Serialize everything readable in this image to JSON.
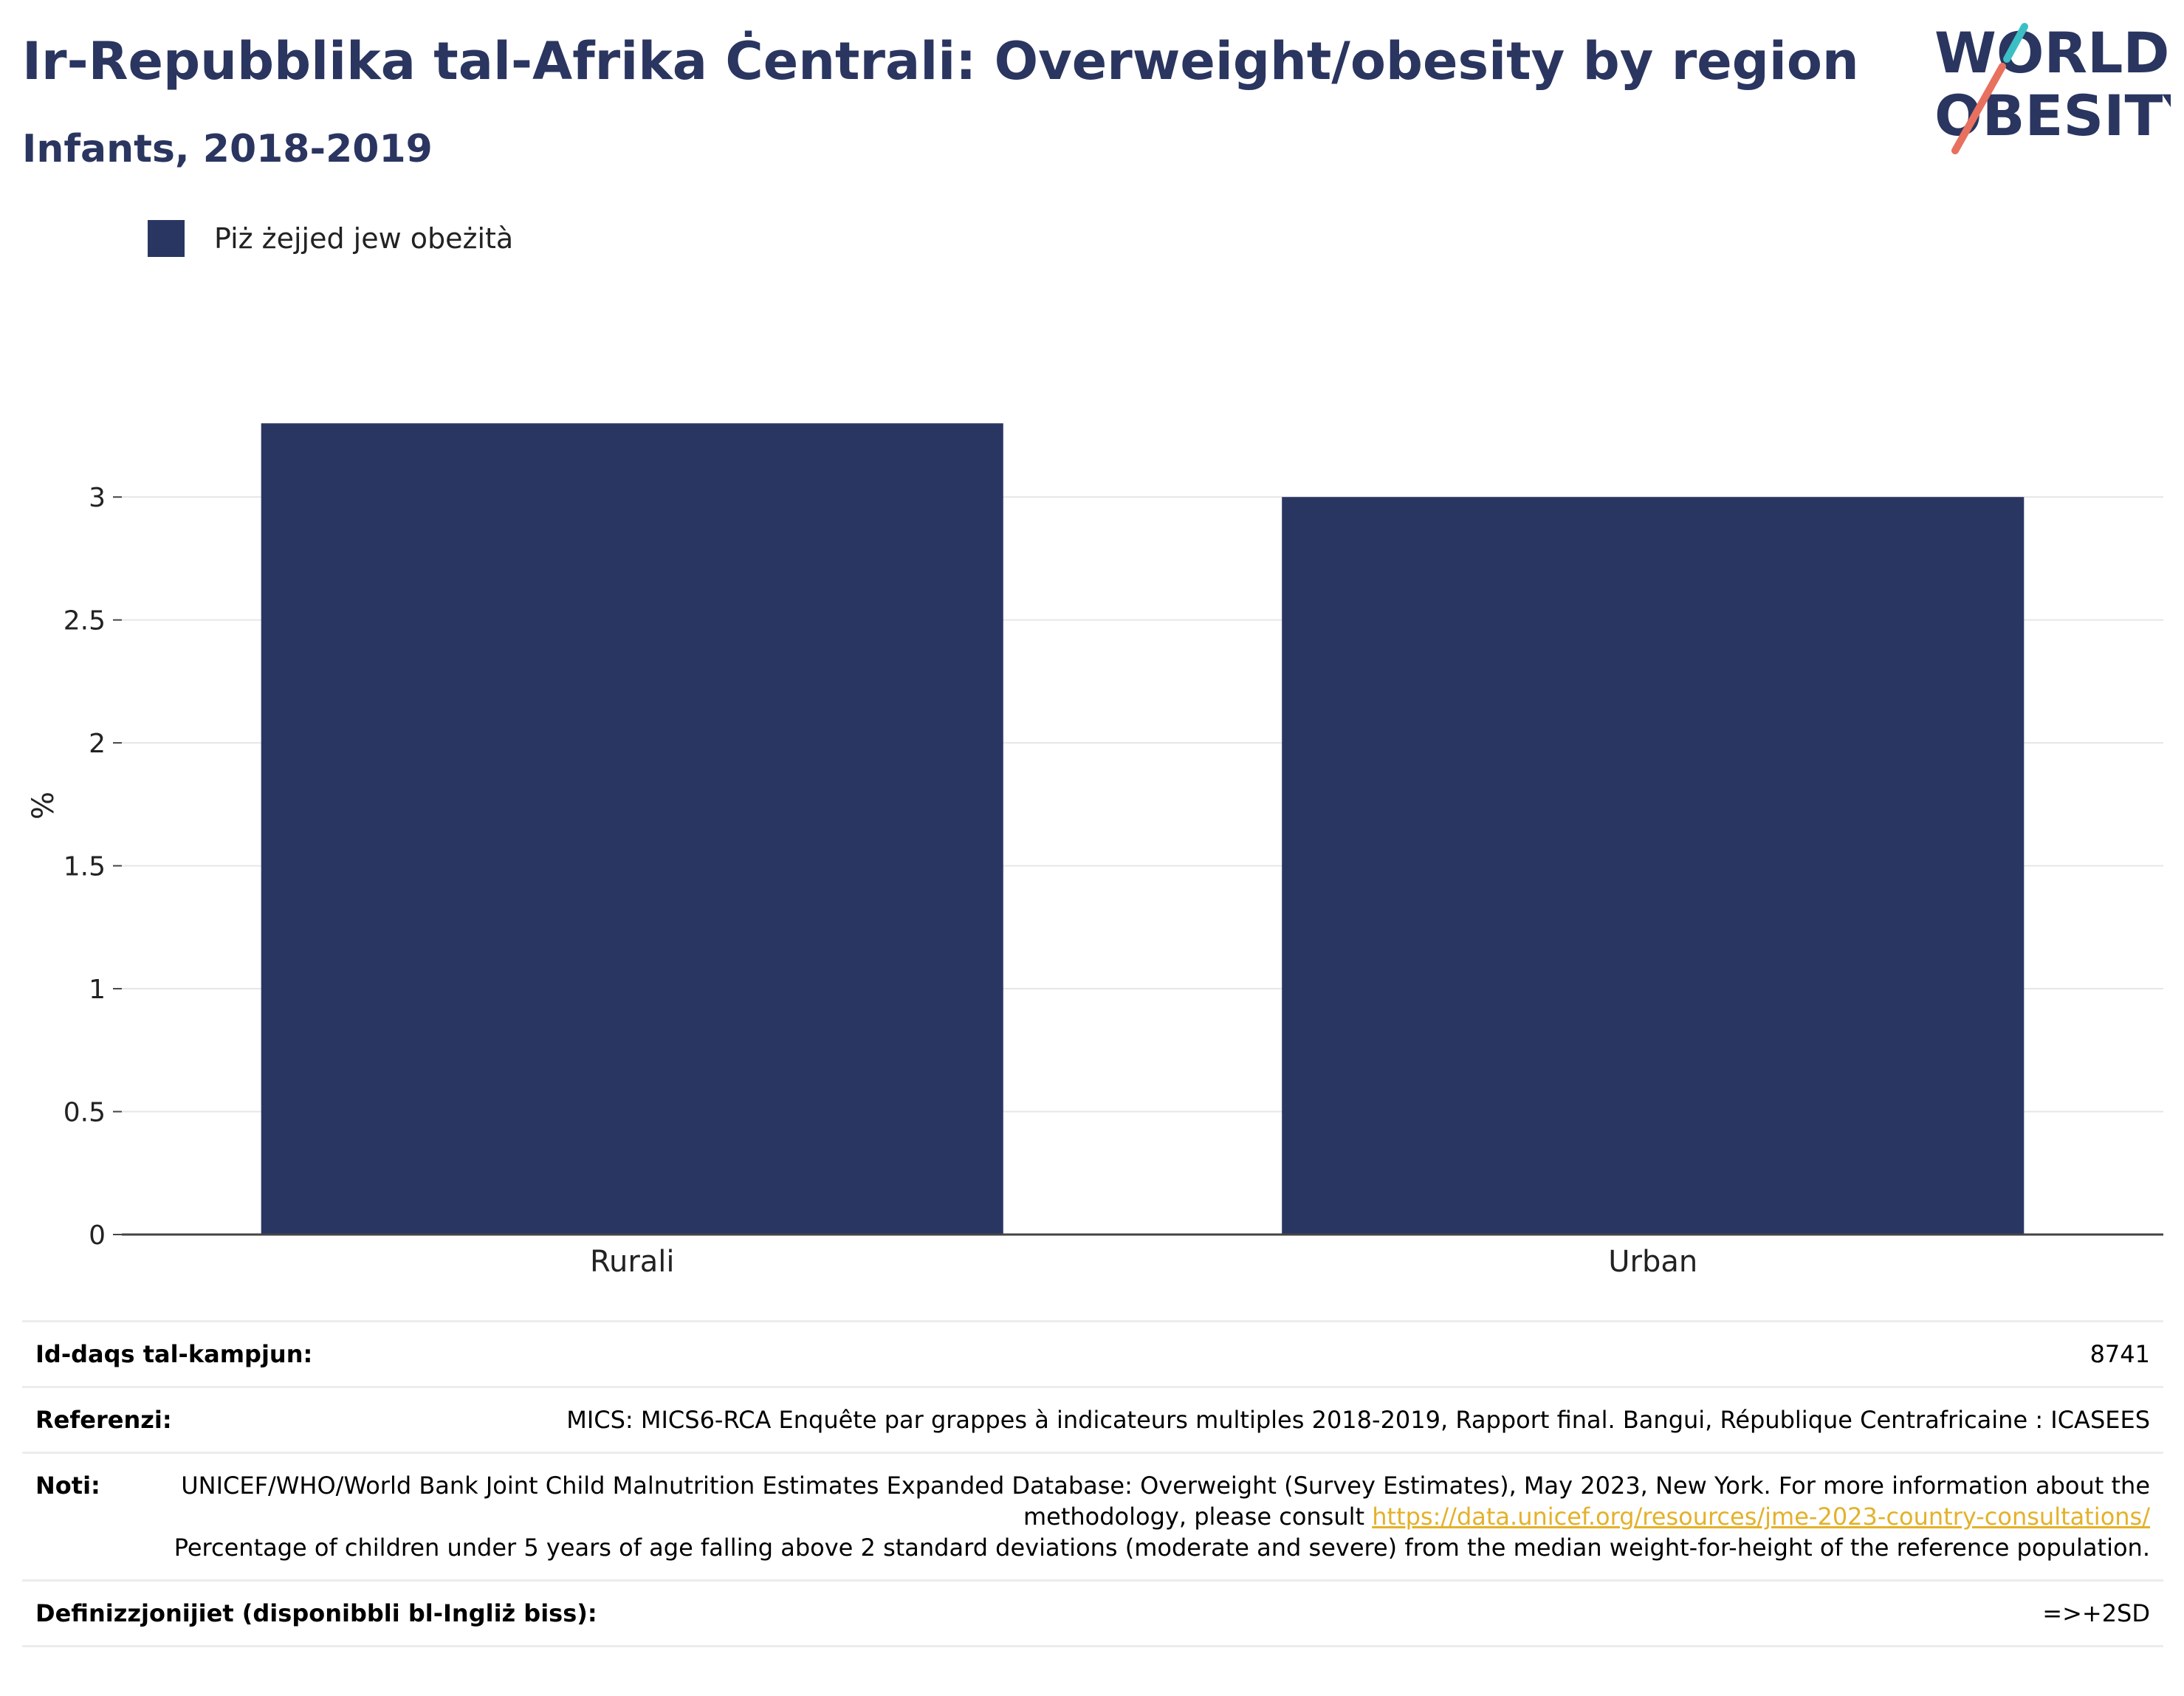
{
  "header": {
    "title": "Ir-Repubblika tal-Afrika Ċentrali: Overweight/obesity by region",
    "subtitle": "Infants, 2018-2019"
  },
  "logo": {
    "line1": "WORLD",
    "line2": "OBESITY",
    "colors": {
      "text": "#2a3560",
      "slash_top": "#3bbfc4",
      "slash_bottom": "#e8705f"
    }
  },
  "legend": {
    "items": [
      {
        "label": "Piż żejjed jew obeżità",
        "color": "#2a3662"
      }
    ]
  },
  "chart_data": {
    "type": "bar",
    "categories": [
      "Rurali",
      "Urban"
    ],
    "series": [
      {
        "name": "Piż żejjed jew obeżità",
        "values": [
          3.3,
          3.0
        ],
        "color": "#2a3662"
      }
    ],
    "ylabel": "%",
    "ylim": [
      0,
      3.4
    ],
    "yticks": [
      0,
      0.5,
      1,
      1.5,
      2,
      2.5,
      3
    ],
    "ytick_labels": [
      "0",
      "0.5",
      "1",
      "1.5",
      "2",
      "2.5",
      "3"
    ],
    "grid": true,
    "legend_position": "top-left"
  },
  "info_table": {
    "sample_size": {
      "label": "Id-daqs tal-kampjun:",
      "value": "8741"
    },
    "references": {
      "label": "Referenzi:",
      "value": "MICS: MICS6-RCA Enquête par grappes à indicateurs multiples 2018-2019, Rapport final. Bangui, République Centrafricaine : ICASEES"
    },
    "notes": {
      "label": "Noti:",
      "text_1": "UNICEF/WHO/World Bank Joint Child Malnutrition Estimates Expanded Database: Overweight (Survey Estimates), May 2023, New York. For more information about the methodology, please consult",
      "link": "https://data.unicef.org/resources/jme-2023-country-consultations/",
      "text_2": "Percentage of children under 5 years of age falling above 2 standard deviations (moderate and severe) from the median weight-for-height of the reference population."
    },
    "definitions": {
      "label": "Definizzjonijiet (disponibbli bl-Ingliż biss):",
      "value": "=>+2SD"
    }
  }
}
